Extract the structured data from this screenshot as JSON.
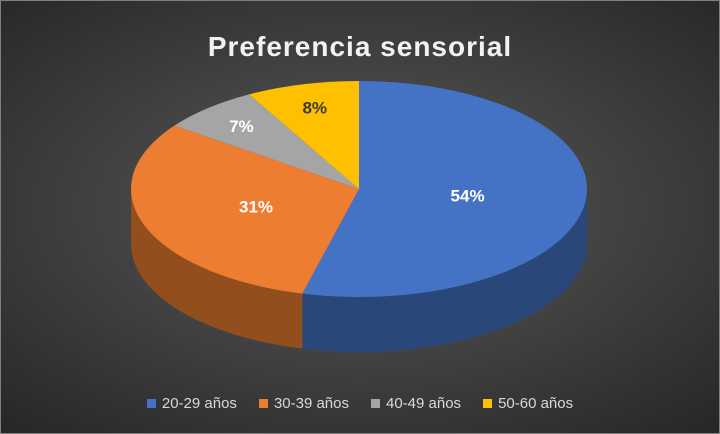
{
  "chart_data": {
    "type": "pie",
    "title": "Preferencia sensorial",
    "categories": [
      "20-29 años",
      "30-39 años",
      "40-49 años",
      "50-60 años"
    ],
    "values": [
      54,
      31,
      7,
      8
    ],
    "labels": [
      "54%",
      "31%",
      "7%",
      "8%"
    ],
    "colors": [
      "#4472c4",
      "#ed7d31",
      "#a5a5a5",
      "#ffc000"
    ],
    "legend": "bottom",
    "style": "3d-pie"
  }
}
